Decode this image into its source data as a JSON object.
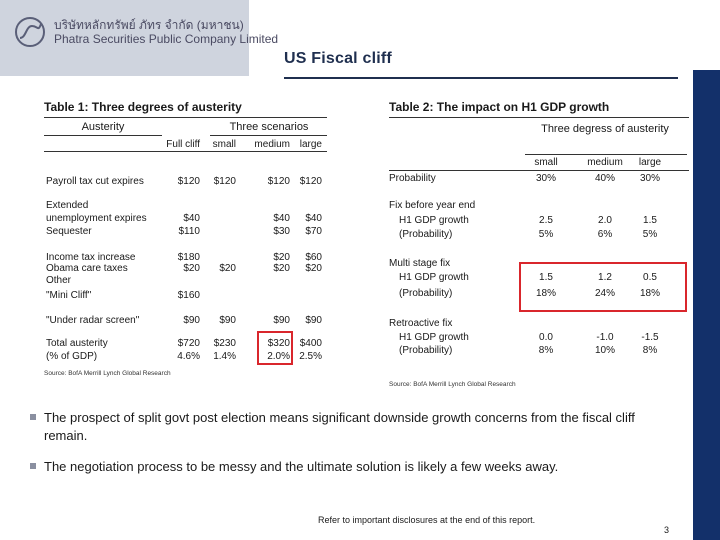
{
  "logo": {
    "name_thai": "บริษัทหลักทรัพย์ ภัทร จำกัด (มหาชน)",
    "name_en": "Phatra Securities Public Company Limited"
  },
  "page": {
    "title": "US Fiscal cliff",
    "number": "3"
  },
  "colors": {
    "accent": "#1f2f4f",
    "bar": "#13306a",
    "highlight": "#d9262c"
  },
  "table1": {
    "title": "Table 1: Three degrees of austerity",
    "group_austerity": "Austerity",
    "group_scenarios": "Three scenarios",
    "columns": [
      "Full cliff",
      "small",
      "medium",
      "large"
    ],
    "rows": [
      {
        "label": "Payroll tax cut expires",
        "values": [
          "$120",
          "$120",
          "$120",
          "$120"
        ]
      },
      {
        "label": "Extended",
        "values": [
          "",
          "",
          "",
          ""
        ]
      },
      {
        "label": "unemployment expires",
        "values": [
          "$40",
          "",
          "$40",
          "$40"
        ]
      },
      {
        "label": "Sequester",
        "values": [
          "$110",
          "",
          "$30",
          "$70"
        ]
      },
      {
        "label": "Income tax increase",
        "values": [
          "$180",
          "",
          "$20",
          "$60"
        ]
      },
      {
        "label": "Obama care taxes",
        "values": [
          "$20",
          "$20",
          "$20",
          "$20"
        ]
      },
      {
        "label": "Other",
        "values": [
          "",
          "",
          "",
          ""
        ]
      },
      {
        "label": "\"Mini Cliff\"",
        "values": [
          "$160",
          "",
          "",
          ""
        ]
      },
      {
        "label": "\"Under radar screen\"",
        "values": [
          "$90",
          "$90",
          "$90",
          "$90"
        ]
      },
      {
        "label": "Total austerity",
        "values": [
          "$720",
          "$230",
          "$320",
          "$400"
        ]
      },
      {
        "label": "(% of GDP)",
        "values": [
          "4.6%",
          "1.4%",
          "2.0%",
          "2.5%"
        ]
      }
    ],
    "source": "Source: BofA Merrill Lynch Global Research"
  },
  "table2": {
    "title": "Table 2: The impact on H1 GDP growth",
    "group_header": "Three degress of austerity",
    "columns": [
      "small",
      "medium",
      "large"
    ],
    "rows": [
      {
        "label": "Probability",
        "values": [
          "30%",
          "40%",
          "30%"
        ]
      },
      {
        "label": "Fix before year end",
        "values": [
          "",
          "",
          ""
        ]
      },
      {
        "label": "H1 GDP growth",
        "values": [
          "2.5",
          "2.0",
          "1.5"
        ]
      },
      {
        "label": "(Probability)",
        "values": [
          "5%",
          "6%",
          "5%"
        ]
      },
      {
        "label": "Multi stage fix",
        "values": [
          "",
          "",
          ""
        ]
      },
      {
        "label": "H1 GDP growth",
        "values": [
          "1.5",
          "1.2",
          "0.5"
        ]
      },
      {
        "label": "(Probability)",
        "values": [
          "18%",
          "24%",
          "18%"
        ]
      },
      {
        "label": "Retroactive fix",
        "values": [
          "",
          "",
          ""
        ]
      },
      {
        "label": "H1 GDP growth",
        "values": [
          "0.0",
          "-1.0",
          "-1.5"
        ]
      },
      {
        "label": "(Probability)",
        "values": [
          "8%",
          "10%",
          "8%"
        ]
      }
    ],
    "source": "Source: BofA Merrill Lynch Global Research"
  },
  "bullets": [
    "The prospect of split govt post election means significant downside growth concerns from the fiscal cliff remain.",
    "The negotiation process to be messy and the ultimate solution is likely a few weeks away."
  ],
  "footer": {
    "note": "Refer to important disclosures at the end of this report."
  }
}
